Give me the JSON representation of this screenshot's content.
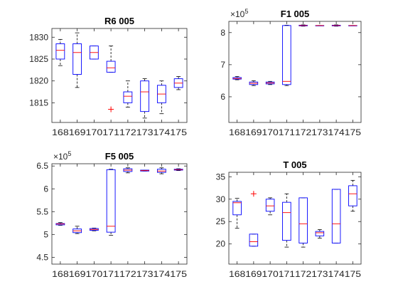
{
  "colors": {
    "box": "#0000ff",
    "median": "#ff0000",
    "outlier": "#ff0000",
    "whisker": "#000000",
    "axis": "#262626"
  },
  "chart_data": [
    {
      "type": "box",
      "title": "R6 005",
      "multiplier": "",
      "categories": [
        "168",
        "169",
        "170",
        "171",
        "172",
        "173",
        "174",
        "175"
      ],
      "ylim": [
        1810.5,
        1832
      ],
      "yticks": [
        1815,
        1820,
        1825,
        1830
      ],
      "ytick_labels": [
        "1815",
        "1820",
        "1825",
        "1830"
      ],
      "boxes": [
        {
          "whisker_low": 1823.5,
          "q1": 1825,
          "median": 1827,
          "q3": 1828.5,
          "whisker_high": 1829.5,
          "outliers": []
        },
        {
          "whisker_low": 1818.5,
          "q1": 1821.5,
          "median": 1826.5,
          "q3": 1828.5,
          "whisker_high": 1831,
          "outliers": []
        },
        {
          "whisker_low": 1825,
          "q1": 1825,
          "median": 1826.5,
          "q3": 1828,
          "whisker_high": 1828,
          "outliers": []
        },
        {
          "whisker_low": 1822,
          "q1": 1822,
          "median": 1823,
          "q3": 1824.5,
          "whisker_high": 1828,
          "outliers": [
            1813.5
          ]
        },
        {
          "whisker_low": 1814,
          "q1": 1815,
          "median": 1816.5,
          "q3": 1817.5,
          "whisker_high": 1820,
          "outliers": []
        },
        {
          "whisker_low": 1811.5,
          "q1": 1813,
          "median": 1817.5,
          "q3": 1820,
          "whisker_high": 1820.5,
          "outliers": []
        },
        {
          "whisker_low": 1812.5,
          "q1": 1815,
          "median": 1817,
          "q3": 1819,
          "whisker_high": 1820,
          "outliers": []
        },
        {
          "whisker_low": 1818,
          "q1": 1818.5,
          "median": 1819.5,
          "q3": 1820.5,
          "whisker_high": 1821,
          "outliers": []
        }
      ]
    },
    {
      "type": "box",
      "title": "F1 005",
      "multiplier": "×10",
      "multiplier_exp": "5",
      "categories": [
        "168",
        "169",
        "170",
        "171",
        "172",
        "173",
        "174",
        "175"
      ],
      "ylim": [
        5.2,
        8.35
      ],
      "yticks": [
        6,
        7,
        8
      ],
      "ytick_labels": [
        "6",
        "7",
        "8"
      ],
      "boxes": [
        {
          "whisker_low": 6.53,
          "q1": 6.55,
          "median": 6.57,
          "q3": 6.6,
          "whisker_high": 6.63,
          "outliers": []
        },
        {
          "whisker_low": 6.35,
          "q1": 6.38,
          "median": 6.42,
          "q3": 6.46,
          "whisker_high": 6.5,
          "outliers": []
        },
        {
          "whisker_low": 6.38,
          "q1": 6.4,
          "median": 6.43,
          "q3": 6.46,
          "whisker_high": 6.48,
          "outliers": []
        },
        {
          "whisker_low": 6.35,
          "q1": 6.38,
          "median": 6.48,
          "q3": 8.22,
          "whisker_high": 8.23,
          "outliers": []
        },
        {
          "whisker_low": 8.2,
          "q1": 8.21,
          "median": 8.22,
          "q3": 8.23,
          "whisker_high": 8.24,
          "outliers": []
        },
        {
          "whisker_low": 8.22,
          "q1": 8.22,
          "median": 8.22,
          "q3": 8.22,
          "whisker_high": 8.22,
          "outliers": []
        },
        {
          "whisker_low": 8.2,
          "q1": 8.21,
          "median": 8.22,
          "q3": 8.23,
          "whisker_high": 8.24,
          "outliers": []
        },
        {
          "whisker_low": 8.22,
          "q1": 8.22,
          "median": 8.22,
          "q3": 8.22,
          "whisker_high": 8.22,
          "outliers": []
        }
      ]
    },
    {
      "type": "box",
      "title": "F5 005",
      "multiplier": "×10",
      "multiplier_exp": "5",
      "categories": [
        "168",
        "169",
        "170",
        "171",
        "172",
        "173",
        "174",
        "175"
      ],
      "ylim": [
        4.35,
        6.55
      ],
      "yticks": [
        4.5,
        5,
        5.5,
        6,
        6.5
      ],
      "ytick_labels": [
        "4.5",
        "5",
        "5.5",
        "6",
        "6.5"
      ],
      "boxes": [
        {
          "whisker_low": 5.2,
          "q1": 5.21,
          "median": 5.23,
          "q3": 5.24,
          "whisker_high": 5.26,
          "outliers": []
        },
        {
          "whisker_low": 5.02,
          "q1": 5.04,
          "median": 5.08,
          "q3": 5.12,
          "whisker_high": 5.18,
          "outliers": []
        },
        {
          "whisker_low": 5.08,
          "q1": 5.09,
          "median": 5.11,
          "q3": 5.13,
          "whisker_high": 5.14,
          "outliers": []
        },
        {
          "whisker_low": 4.98,
          "q1": 5.05,
          "median": 5.18,
          "q3": 6.42,
          "whisker_high": 6.43,
          "outliers": []
        },
        {
          "whisker_low": 6.35,
          "q1": 6.38,
          "median": 6.41,
          "q3": 6.44,
          "whisker_high": 6.46,
          "outliers": []
        },
        {
          "whisker_low": 6.39,
          "q1": 6.39,
          "median": 6.4,
          "q3": 6.41,
          "whisker_high": 6.41,
          "outliers": []
        },
        {
          "whisker_low": 6.33,
          "q1": 6.36,
          "median": 6.39,
          "q3": 6.43,
          "whisker_high": 6.46,
          "outliers": []
        },
        {
          "whisker_low": 6.4,
          "q1": 6.41,
          "median": 6.42,
          "q3": 6.43,
          "whisker_high": 6.44,
          "outliers": []
        }
      ]
    },
    {
      "type": "box",
      "title": "T 005",
      "multiplier": "",
      "categories": [
        "168",
        "169",
        "170",
        "171",
        "172",
        "173",
        "174",
        "175"
      ],
      "ylim": [
        15.5,
        36
      ],
      "yticks": [
        20,
        25,
        30,
        35
      ],
      "ytick_labels": [
        "20",
        "25",
        "30",
        "35"
      ],
      "boxes": [
        {
          "whisker_low": 23.5,
          "q1": 26.5,
          "median": 29.2,
          "q3": 29.5,
          "whisker_high": 30.2,
          "outliers": []
        },
        {
          "whisker_low": 19.5,
          "q1": 19.5,
          "median": 20.5,
          "q3": 22.2,
          "whisker_high": 22.2,
          "outliers": [
            31.2
          ]
        },
        {
          "whisker_low": 26.5,
          "q1": 27.3,
          "median": 28.5,
          "q3": 30,
          "whisker_high": 30.3,
          "outliers": []
        },
        {
          "whisker_low": 19.3,
          "q1": 20.8,
          "median": 27,
          "q3": 29.3,
          "whisker_high": 31.2,
          "outliers": []
        },
        {
          "whisker_low": 19.3,
          "q1": 20.2,
          "median": 24.5,
          "q3": 30.3,
          "whisker_high": 30.3,
          "outliers": []
        },
        {
          "whisker_low": 21.3,
          "q1": 21.8,
          "median": 22.5,
          "q3": 22.8,
          "whisker_high": 23.2,
          "outliers": []
        },
        {
          "whisker_low": 20.2,
          "q1": 20.2,
          "median": 24.5,
          "q3": 32.2,
          "whisker_high": 32.2,
          "outliers": []
        },
        {
          "whisker_low": 27.3,
          "q1": 28.5,
          "median": 31.2,
          "q3": 33,
          "whisker_high": 34.2,
          "outliers": []
        }
      ]
    }
  ]
}
